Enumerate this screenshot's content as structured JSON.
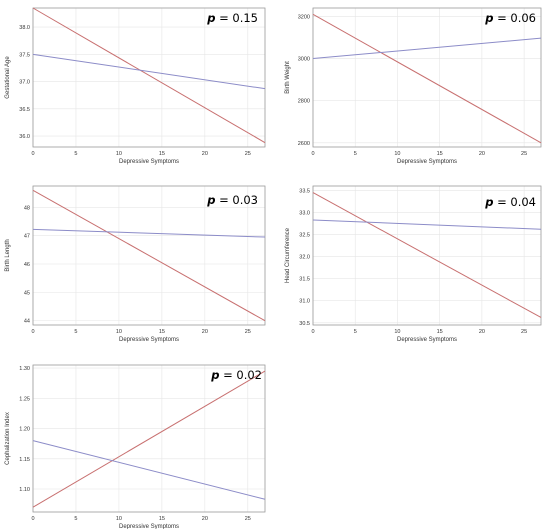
{
  "chart_data": [
    {
      "type": "line",
      "xlabel": "Depressive Symptoms",
      "ylabel": "Gestational Age",
      "annotation": {
        "p": "p",
        "text": " = 0.15"
      },
      "xlim": [
        0,
        27
      ],
      "ylim": [
        35.8,
        38.35
      ],
      "xticks": [
        "0",
        "5",
        "10",
        "15",
        "20",
        "25"
      ],
      "yticks": [
        "36.0",
        "36.5",
        "37.0",
        "37.5",
        "38.0"
      ],
      "grid": true,
      "series": [
        {
          "color": "#c87070",
          "x": [
            0,
            27
          ],
          "values": [
            38.35,
            35.88
          ]
        },
        {
          "color": "#8c8cc8",
          "x": [
            0,
            27
          ],
          "values": [
            37.5,
            36.87
          ]
        }
      ]
    },
    {
      "type": "line",
      "xlabel": "Depressive Symptoms",
      "ylabel": "Birth Weight",
      "annotation": {
        "p": "p",
        "text": " = 0.06"
      },
      "xlim": [
        0,
        27
      ],
      "ylim": [
        2580,
        3240
      ],
      "xticks": [
        "0",
        "5",
        "10",
        "15",
        "20",
        "25"
      ],
      "yticks": [
        "2600",
        "2800",
        "3000",
        "3200"
      ],
      "grid": true,
      "series": [
        {
          "color": "#c87070",
          "x": [
            0,
            27
          ],
          "values": [
            3210,
            2600
          ]
        },
        {
          "color": "#8c8cc8",
          "x": [
            0,
            27
          ],
          "values": [
            3000,
            3097
          ]
        }
      ]
    },
    {
      "type": "line",
      "xlabel": "Depressive Symptoms",
      "ylabel": "Birth Length",
      "annotation": {
        "p": "p",
        "text": " = 0.03"
      },
      "xlim": [
        0,
        27
      ],
      "ylim": [
        43.85,
        48.75
      ],
      "xticks": [
        "0",
        "5",
        "10",
        "15",
        "20",
        "25"
      ],
      "yticks": [
        "44",
        "45",
        "46",
        "47",
        "48"
      ],
      "grid": true,
      "series": [
        {
          "color": "#c87070",
          "x": [
            0,
            27
          ],
          "values": [
            48.6,
            44.0
          ]
        },
        {
          "color": "#8c8cc8",
          "x": [
            0,
            27
          ],
          "values": [
            47.22,
            46.95
          ]
        }
      ]
    },
    {
      "type": "line",
      "xlabel": "Depressive Symptoms",
      "ylabel": "Head Circumference",
      "annotation": {
        "p": "p",
        "text": " = 0.04"
      },
      "xlim": [
        0,
        27
      ],
      "ylim": [
        30.45,
        33.6
      ],
      "xticks": [
        "0",
        "5",
        "10",
        "15",
        "20",
        "25"
      ],
      "yticks": [
        "30.5",
        "31.0",
        "31.5",
        "32.0",
        "32.5",
        "33.0",
        "33.5"
      ],
      "grid": true,
      "series": [
        {
          "color": "#c87070",
          "x": [
            0,
            27
          ],
          "values": [
            33.45,
            30.62
          ]
        },
        {
          "color": "#8c8cc8",
          "x": [
            0,
            27
          ],
          "values": [
            32.83,
            32.62
          ]
        }
      ]
    },
    {
      "type": "line",
      "xlabel": "Depressive Symptoms",
      "ylabel": "Cephalization Index",
      "annotation": {
        "p": "p",
        "text": " = 0.02"
      },
      "xlim": [
        0,
        27
      ],
      "ylim": [
        1.062,
        1.305
      ],
      "xticks": [
        "0",
        "5",
        "10",
        "15",
        "20",
        "25"
      ],
      "yticks": [
        "1.10",
        "1.15",
        "1.20",
        "1.25",
        "1.30"
      ],
      "grid": true,
      "series": [
        {
          "color": "#c87070",
          "x": [
            0,
            27
          ],
          "values": [
            1.07,
            1.295
          ]
        },
        {
          "color": "#8c8cc8",
          "x": [
            0,
            27
          ],
          "values": [
            1.18,
            1.083
          ]
        }
      ]
    }
  ]
}
